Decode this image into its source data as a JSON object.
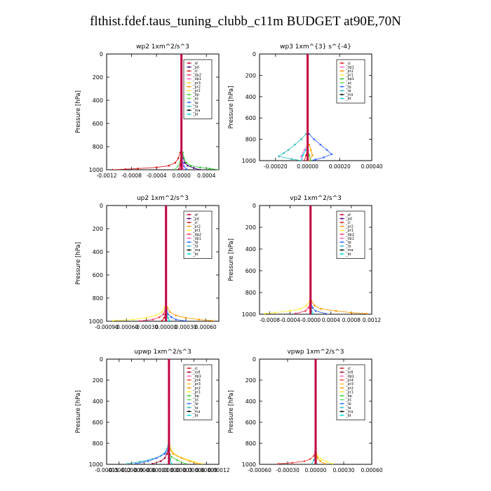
{
  "title": "flthist.fdef.taus_tuning_clubb_c11m  BUDGET at90E,70N",
  "colors": {
    "_sf": "#cc0033",
    "_pd": "#4b0082",
    "_cl": "#d7191c",
    "_dp2": "#ff3366",
    "_dp1": "#ff66cc",
    "_pr2": "#ff9900",
    "_pr3": "#ffcc33",
    "_pr1": "#ffee33",
    "_bp": "#33cc33",
    "_ac": "#66dd66",
    "_tp": "#3366ff",
    "_ta": "#33bbbb",
    "_ma": "#000000",
    "_bt": "#00dddd",
    "_mfl": "#990033",
    "_pr4": "#ee4444"
  },
  "chart_data": [
    {
      "id": "wp2",
      "type": "line",
      "title": "wp2   1xm^2/s^3",
      "ylabel": "Pressure [hPa]",
      "xlim": [
        -0.0012,
        0.0006
      ],
      "ylim": [
        1000,
        0
      ],
      "xticks": [
        -0.0012,
        -0.0008,
        -0.0004,
        0.0,
        0.0004
      ],
      "xtick_labels": [
        "-0.0012",
        "-0.0008",
        "-0.0004",
        "0.0000",
        "0.0004"
      ],
      "yticks": [
        0,
        200,
        400,
        600,
        800,
        1000
      ],
      "ytick_labels": [
        "0",
        "200",
        "400",
        "600",
        "800",
        "1000"
      ],
      "legend": [
        "_sf",
        "_pd",
        "_cl",
        "_dp2",
        "_dp1",
        "_pr3",
        "_pr2",
        "_pr1",
        "_bp",
        "_ac",
        "_tp",
        "_ta",
        "_ma",
        "_bt"
      ],
      "series": [
        {
          "name": "_pd",
          "x": [
            2e-05,
            3e-05,
            5e-05,
            0.0001,
            0.0002,
            0.0003
          ],
          "y": [
            850,
            900,
            940,
            965,
            985,
            1000
          ]
        },
        {
          "name": "_cl",
          "x": [
            -2e-05,
            -5e-05,
            -0.0001,
            -0.0002,
            -0.0004,
            -0.0007,
            -0.0009,
            -0.0011
          ],
          "y": [
            850,
            900,
            940,
            965,
            980,
            990,
            995,
            1000
          ]
        },
        {
          "name": "_bp",
          "x": [
            2e-05,
            4e-05,
            8e-05,
            0.00015,
            0.0003,
            0.00045,
            0.0006
          ],
          "y": [
            850,
            900,
            940,
            965,
            980,
            990,
            1000
          ]
        },
        {
          "name": "_ac",
          "x": [
            -1e-05,
            -3e-05,
            -6e-05,
            -0.0001
          ],
          "y": [
            900,
            940,
            970,
            995
          ]
        },
        {
          "name": "_tp",
          "x": [
            1e-05,
            2e-05,
            4e-05,
            8e-05
          ],
          "y": [
            900,
            940,
            970,
            995
          ]
        },
        {
          "name": "_sf",
          "x": [
            -1e-05,
            -2e-05,
            -4e-05
          ],
          "y": [
            920,
            960,
            995
          ]
        },
        {
          "name": "_dp1",
          "x": [
            1e-05,
            2e-05,
            3e-05
          ],
          "y": [
            920,
            960,
            995
          ]
        },
        {
          "name": "_bt",
          "x": [
            0.0,
            0.0,
            0.0
          ],
          "y": [
            700,
            900,
            1000
          ]
        }
      ]
    },
    {
      "id": "wp3",
      "type": "line",
      "title": "wp3   1xm^{3} s^{-4}",
      "ylabel": "Pressure [hPa]",
      "xlim": [
        -0.0003,
        0.0004
      ],
      "ylim": [
        1000,
        0
      ],
      "xticks": [
        -0.0002,
        0.0,
        0.0002,
        0.0004
      ],
      "xtick_labels": [
        "-0.00020",
        "0.00000",
        "0.00020",
        "0.00040"
      ],
      "yticks": [
        0,
        200,
        400,
        600,
        800,
        1000
      ],
      "ytick_labels": [
        "0",
        "200",
        "400",
        "600",
        "800",
        "1000"
      ],
      "legend": [
        "_cl",
        "_dp1",
        "_pr2",
        "_pr1",
        "_bp1",
        "_ac",
        "_tp",
        "_ta",
        "_ma",
        "_bt"
      ],
      "series": [
        {
          "name": "_tp",
          "x": [
            1e-05,
            4e-05,
            8e-05,
            0.00012,
            0.00015,
            0.0001,
            5e-05,
            2e-05
          ],
          "y": [
            750,
            800,
            850,
            900,
            940,
            970,
            990,
            1000
          ]
        },
        {
          "name": "_ta",
          "x": [
            -1e-05,
            -4e-05,
            -8e-05,
            -0.00012,
            -0.00015,
            -0.00018,
            -0.0001,
            -4e-05
          ],
          "y": [
            750,
            800,
            850,
            900,
            930,
            960,
            985,
            1000
          ]
        },
        {
          "name": "_dp1",
          "x": [
            0.0,
            -2e-05,
            -4e-05,
            -3e-05
          ],
          "y": [
            850,
            900,
            960,
            1000
          ]
        },
        {
          "name": "_pr2",
          "x": [
            1e-05,
            2e-05,
            3e-05,
            1e-05
          ],
          "y": [
            850,
            900,
            950,
            1000
          ]
        },
        {
          "name": "_cl",
          "x": [
            0.0,
            -1e-05,
            -2e-05
          ],
          "y": [
            900,
            950,
            1000
          ]
        },
        {
          "name": "_bp",
          "x": [
            0.0,
            1e-05,
            2e-05
          ],
          "y": [
            900,
            950,
            1000
          ]
        },
        {
          "name": "_bt",
          "x": [
            -1e-05,
            -3e-05,
            -4e-05
          ],
          "y": [
            900,
            950,
            1000
          ]
        }
      ]
    },
    {
      "id": "up2",
      "type": "line",
      "title": "up2   1xm^2/s^3",
      "ylabel": "Pressure [hPa]",
      "xlim": [
        -0.0009,
        0.0008
      ],
      "ylim": [
        1000,
        0
      ],
      "xticks": [
        -0.0009,
        -0.0006,
        -0.0003,
        0.0,
        0.0003,
        0.0006
      ],
      "xtick_labels": [
        "-0.00090",
        "-0.00060",
        "-0.00030",
        "0.00000",
        "0.00030",
        "0.00060"
      ],
      "yticks": [
        0,
        200,
        400,
        600,
        800,
        1000
      ],
      "ytick_labels": [
        "0",
        "200",
        "400",
        "600",
        "800",
        "1000"
      ],
      "legend": [
        "_sf",
        "_pd",
        "_cl",
        "_pr2",
        "_pr1",
        "_dp2",
        "_dp1",
        "_tp",
        "_ta",
        "_ma",
        "_bt"
      ],
      "series": [
        {
          "name": "_pr1",
          "x": [
            -2e-05,
            -6e-05,
            -0.00015,
            -0.0003,
            -0.0005,
            -0.0008
          ],
          "y": [
            880,
            920,
            950,
            970,
            985,
            995
          ]
        },
        {
          "name": "_pr2",
          "x": [
            2e-05,
            6e-05,
            0.00015,
            0.0003,
            0.0005,
            0.0007
          ],
          "y": [
            880,
            920,
            950,
            970,
            985,
            995
          ]
        },
        {
          "name": "_dp2",
          "x": [
            -1e-05,
            -4e-05,
            -0.0001,
            -0.0002,
            -0.0004
          ],
          "y": [
            900,
            940,
            965,
            985,
            998
          ]
        },
        {
          "name": "_tp",
          "x": [
            1e-05,
            3e-05,
            8e-05,
            0.00015,
            0.0003
          ],
          "y": [
            900,
            940,
            965,
            985,
            998
          ]
        },
        {
          "name": "_cl",
          "x": [
            -1e-05,
            -3e-05,
            -6e-05
          ],
          "y": [
            940,
            970,
            995
          ]
        },
        {
          "name": "_bt",
          "x": [
            1e-05,
            3e-05,
            5e-05
          ],
          "y": [
            940,
            970,
            995
          ]
        }
      ]
    },
    {
      "id": "vp2",
      "type": "line",
      "title": "vp2   1xm^2/s^3",
      "ylabel": "Pressure [hPa]",
      "xlim": [
        -0.001,
        0.0012
      ],
      "ylim": [
        1000,
        0
      ],
      "xticks": [
        -0.0008,
        -0.0004,
        0.0,
        0.0004,
        0.0008,
        0.0012
      ],
      "xtick_labels": [
        "-0.0008",
        "-0.0004",
        "-0.0000",
        "0.0004",
        "0.0008",
        "0.0012"
      ],
      "yticks": [
        0,
        200,
        400,
        600,
        800,
        1000
      ],
      "ytick_labels": [
        "0",
        "200",
        "400",
        "600",
        "800",
        "1000"
      ],
      "legend": [
        "_sf",
        "_pd",
        "_cl",
        "_pr2",
        "_pr1",
        "_dp2",
        "_dp1",
        "_tp",
        "_ta",
        "_ma",
        "_bt"
      ],
      "series": [
        {
          "name": "_pr1",
          "x": [
            -2e-05,
            -8e-05,
            -0.0002,
            -0.0004,
            -0.0007,
            -0.0009
          ],
          "y": [
            880,
            920,
            950,
            970,
            985,
            995
          ]
        },
        {
          "name": "_pr2",
          "x": [
            2e-05,
            8e-05,
            0.0002,
            0.0005,
            0.0008,
            0.0011
          ],
          "y": [
            880,
            920,
            950,
            970,
            985,
            995
          ]
        },
        {
          "name": "_dp2",
          "x": [
            -1e-05,
            -4e-05,
            -0.0001,
            -0.0003
          ],
          "y": [
            900,
            940,
            970,
            995
          ]
        },
        {
          "name": "_tp",
          "x": [
            1e-05,
            4e-05,
            0.0001,
            0.0003
          ],
          "y": [
            900,
            940,
            970,
            995
          ]
        },
        {
          "name": "_bt",
          "x": [
            1e-05,
            2e-05,
            4e-05
          ],
          "y": [
            940,
            970,
            995
          ]
        }
      ]
    },
    {
      "id": "upwp",
      "type": "line",
      "title": "upwp   1xm^2/s^3",
      "ylabel": "Pressure [hPa]",
      "xlim": [
        -0.00015,
        0.00012
      ],
      "ylim": [
        1000,
        0
      ],
      "xticks": [
        -0.00015,
        -0.00012,
        -9e-05,
        -6e-05,
        -3e-05,
        0.0,
        3e-05,
        6e-05,
        9e-05,
        0.00012
      ],
      "xtick_labels": [
        "-0.00015",
        "-0.00012",
        "-0.00009",
        "-0.00006",
        "-0.00003",
        "0.00000",
        "0.00003",
        "0.00006",
        "0.00009",
        "0.00012"
      ],
      "yticks": [
        0,
        200,
        400,
        600,
        800,
        1000
      ],
      "ytick_labels": [
        "0",
        "200",
        "400",
        "600",
        "800",
        "1000"
      ],
      "legend": [
        "_cl",
        "_mfl",
        "_dp1",
        "_pr4",
        "_pr3",
        "_pr2",
        "_pr1",
        "_bp",
        "_ac",
        "_tp",
        "_ta",
        "_ma",
        "_bt"
      ],
      "series": [
        {
          "name": "_pr1",
          "x": [
            2e-06,
            8e-06,
            2e-05,
            4e-05,
            6e-05,
            8e-05
          ],
          "y": [
            820,
            880,
            920,
            950,
            975,
            995
          ]
        },
        {
          "name": "_pr2",
          "x": [
            2e-06,
            1e-05,
            3e-05,
            5e-05,
            7e-05
          ],
          "y": [
            850,
            900,
            940,
            970,
            995
          ]
        },
        {
          "name": "_ta",
          "x": [
            -2e-06,
            -8e-06,
            -2e-05,
            -4e-05,
            -7e-05,
            -0.0001
          ],
          "y": [
            820,
            880,
            920,
            950,
            975,
            995
          ]
        },
        {
          "name": "_tp",
          "x": [
            -2e-06,
            -1e-05,
            -3e-05,
            -5e-05,
            -8e-05
          ],
          "y": [
            850,
            900,
            940,
            970,
            995
          ]
        },
        {
          "name": "_mfl",
          "x": [
            -1e-06,
            -5e-06,
            -1e-05,
            -2e-05,
            -4e-05
          ],
          "y": [
            850,
            900,
            940,
            970,
            995
          ]
        },
        {
          "name": "_bp",
          "x": [
            2e-06,
            6e-06,
            2e-05,
            4e-05
          ],
          "y": [
            900,
            930,
            960,
            995
          ]
        },
        {
          "name": "_bt",
          "x": [
            0.0,
            3e-06,
            6e-06
          ],
          "y": [
            900,
            950,
            995
          ]
        }
      ]
    },
    {
      "id": "vpwp",
      "type": "line",
      "title": "vpwp   1xm^2/s^3",
      "ylabel": "Pressure [hPa]",
      "xlim": [
        -0.0006,
        0.0006
      ],
      "ylim": [
        1000,
        0
      ],
      "xticks": [
        -0.0006,
        -0.0003,
        0.0,
        0.0003,
        0.0006
      ],
      "xtick_labels": [
        "-0.00060",
        "-0.00030",
        "0.00000",
        "0.00030",
        "0.00060"
      ],
      "yticks": [
        0,
        200,
        400,
        600,
        800,
        1000
      ],
      "ytick_labels": [
        "0",
        "200",
        "400",
        "600",
        "800",
        "1000"
      ],
      "legend": [
        "_cl",
        "_mfl",
        "_dp1",
        "_pr4",
        "_pr3",
        "_pr2",
        "_pr1",
        "_bp",
        "_ac",
        "_tp",
        "_ta",
        "_ma",
        "_bt"
      ],
      "series": [
        {
          "name": "_pr4",
          "x": [
            -5e-06,
            -2e-05,
            -6e-05,
            -0.00012,
            -0.00025,
            -0.0004
          ],
          "y": [
            880,
            920,
            950,
            970,
            985,
            995
          ]
        },
        {
          "name": "_pr1",
          "x": [
            5e-06,
            2e-05,
            6e-05,
            0.00012,
            0.00018
          ],
          "y": [
            880,
            920,
            950,
            975,
            995
          ]
        },
        {
          "name": "_pr2",
          "x": [
            5e-06,
            2e-05,
            5e-05,
            0.0001
          ],
          "y": [
            900,
            940,
            970,
            995
          ]
        },
        {
          "name": "_ta",
          "x": [
            -5e-06,
            -2e-05,
            -4e-05
          ],
          "y": [
            920,
            960,
            995
          ]
        },
        {
          "name": "_bt",
          "x": [
            0.0,
            5e-06,
            1e-05
          ],
          "y": [
            920,
            960,
            995
          ]
        }
      ]
    }
  ]
}
